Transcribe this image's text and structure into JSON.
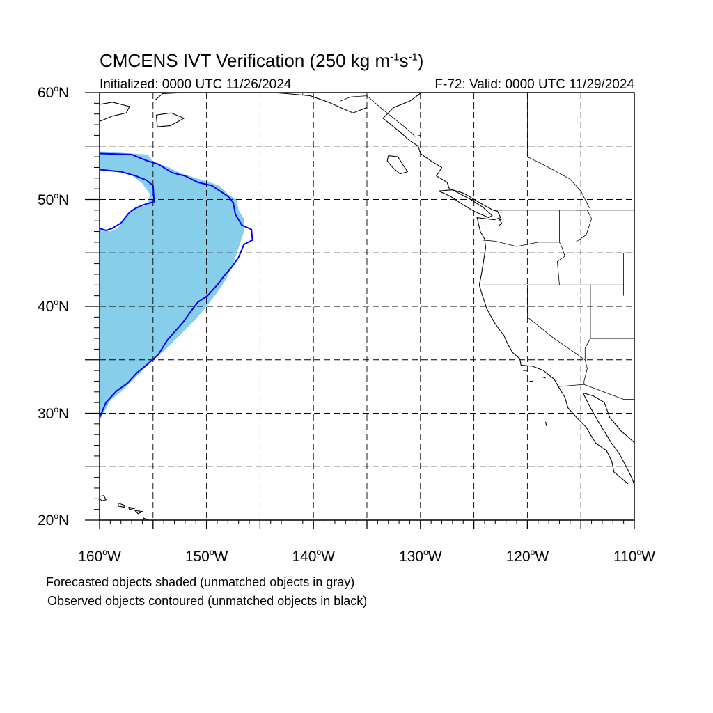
{
  "title": {
    "main": "CMCENS IVT Verification (250 kg m",
    "sup1": "-1",
    "mid": "s",
    "sup2": "-1",
    "end": ")"
  },
  "subtitle_left": "Initialized: 0000 UTC 11/26/2024",
  "subtitle_right": "F-72: Valid: 0000 UTC 11/29/2024",
  "lat_labels": [
    {
      "lat": 60,
      "text": "60",
      "hemi": "N"
    },
    {
      "lat": 50,
      "text": "50",
      "hemi": "N"
    },
    {
      "lat": 40,
      "text": "40",
      "hemi": "N"
    },
    {
      "lat": 30,
      "text": "30",
      "hemi": "N"
    },
    {
      "lat": 20,
      "text": "20",
      "hemi": "N"
    }
  ],
  "lon_labels": [
    {
      "lon": -160,
      "text": "160",
      "hemi": "W"
    },
    {
      "lon": -150,
      "text": "150",
      "hemi": "W"
    },
    {
      "lon": -140,
      "text": "140",
      "hemi": "W"
    },
    {
      "lon": -130,
      "text": "130",
      "hemi": "W"
    },
    {
      "lon": -120,
      "text": "120",
      "hemi": "W"
    },
    {
      "lon": -110,
      "text": "110",
      "hemi": "W"
    }
  ],
  "caption_forecast": "Forecasted objects shaded (unmatched objects in gray)",
  "caption_observed": "Observed objects contoured (unmatched objects in black)",
  "colors": {
    "forecast_fill": "#87ceeb",
    "observed_contour": "#0000ff",
    "coast": "#000000",
    "grid": "#000000"
  },
  "map_extent": {
    "lon_min": -160,
    "lon_max": -110,
    "lat_min": 20,
    "lat_max": 60
  },
  "grid_spacing_deg": 5,
  "forecast_object": [
    [
      -160,
      54.5
    ],
    [
      -155.5,
      54.2
    ],
    [
      -155,
      53.5
    ],
    [
      -153.5,
      53
    ],
    [
      -152.5,
      52.5
    ],
    [
      -151,
      52
    ],
    [
      -150,
      51.7
    ],
    [
      -148.8,
      51.3
    ],
    [
      -148,
      50.5
    ],
    [
      -147.2,
      50
    ],
    [
      -147,
      49
    ],
    [
      -146.5,
      48.2
    ],
    [
      -146.5,
      47
    ],
    [
      -147,
      45.5
    ],
    [
      -147.5,
      44
    ],
    [
      -148.2,
      42.5
    ],
    [
      -149,
      41.3
    ],
    [
      -150,
      40
    ],
    [
      -151,
      38.8
    ],
    [
      -152,
      37.8
    ],
    [
      -153,
      36.8
    ],
    [
      -154,
      35.8
    ],
    [
      -155,
      35
    ],
    [
      -156,
      34
    ],
    [
      -157,
      33
    ],
    [
      -158,
      32
    ],
    [
      -159,
      31.2
    ],
    [
      -160,
      29.3
    ],
    [
      -160,
      47.3
    ],
    [
      -159,
      47
    ],
    [
      -158.3,
      47.3
    ],
    [
      -157.5,
      48.5
    ],
    [
      -156.5,
      49.2
    ],
    [
      -155.5,
      49.5
    ],
    [
      -155.3,
      50.5
    ],
    [
      -156,
      51.5
    ],
    [
      -157,
      52.3
    ],
    [
      -158.5,
      52.7
    ],
    [
      -160,
      52.8
    ]
  ],
  "observed_contour": [
    [
      -160,
      54.3
    ],
    [
      -157,
      54.2
    ],
    [
      -155.5,
      53.6
    ],
    [
      -154.5,
      53.3
    ],
    [
      -153.2,
      52.5
    ],
    [
      -152,
      52.2
    ],
    [
      -150.8,
      51.6
    ],
    [
      -149.5,
      51.3
    ],
    [
      -148,
      50.3
    ],
    [
      -147.5,
      49.7
    ],
    [
      -147.3,
      48.6
    ],
    [
      -146.7,
      47.6
    ],
    [
      -145.8,
      47.2
    ],
    [
      -145.7,
      46.2
    ],
    [
      -146.5,
      45.8
    ],
    [
      -147,
      44.6
    ],
    [
      -147.7,
      43.6
    ],
    [
      -148.4,
      42.8
    ],
    [
      -149,
      42
    ],
    [
      -149.9,
      41
    ],
    [
      -150.8,
      40.4
    ],
    [
      -151.5,
      39.5
    ],
    [
      -152.2,
      38.5
    ],
    [
      -153,
      37.6
    ],
    [
      -153.7,
      36.8
    ],
    [
      -154.5,
      35.5
    ],
    [
      -155.5,
      34.6
    ],
    [
      -156.5,
      33.8
    ],
    [
      -157.4,
      32.8
    ],
    [
      -158.4,
      32.1
    ],
    [
      -159.4,
      31
    ],
    [
      -160,
      29.6
    ]
  ],
  "observed_inner": [
    [
      -160,
      52.8
    ],
    [
      -158,
      52.6
    ],
    [
      -156.6,
      52.2
    ],
    [
      -155.6,
      51.8
    ],
    [
      -155,
      51.3
    ],
    [
      -154.9,
      49.8
    ],
    [
      -155.9,
      49.5
    ],
    [
      -156.6,
      49.2
    ],
    [
      -157.2,
      48.8
    ],
    [
      -158,
      47.8
    ],
    [
      -158.8,
      47.3
    ],
    [
      -159.4,
      47.1
    ],
    [
      -160,
      47.3
    ]
  ]
}
